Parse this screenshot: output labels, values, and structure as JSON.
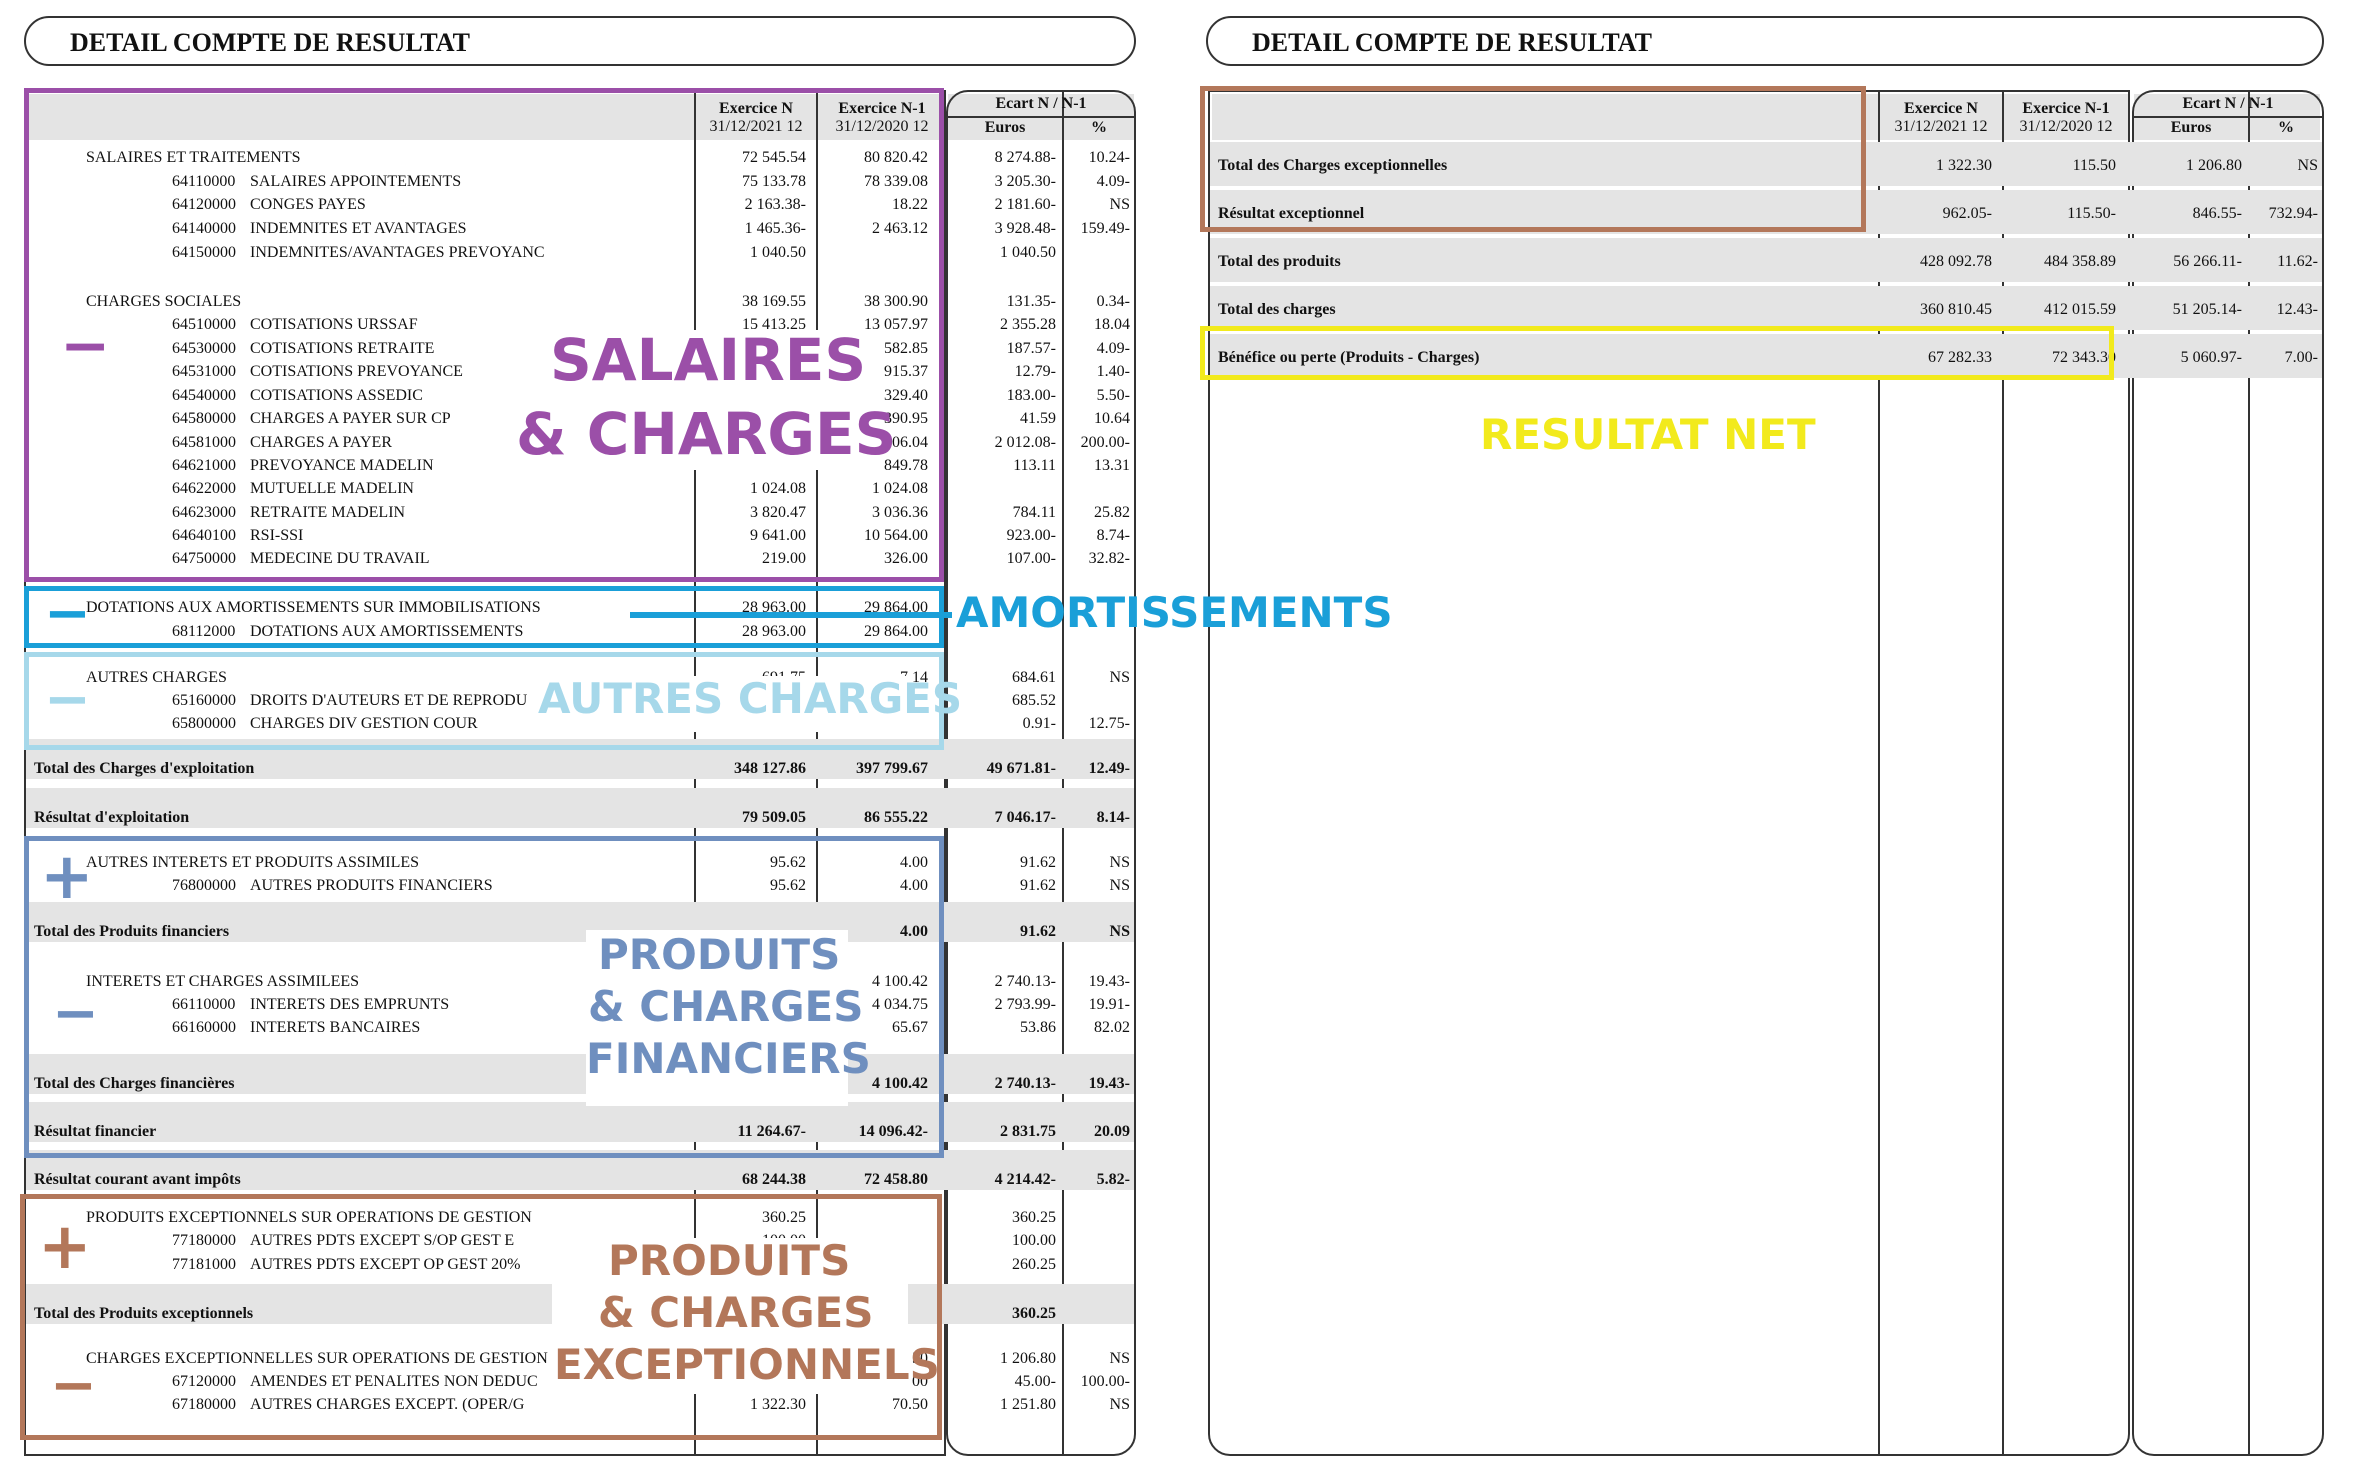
{
  "left": {
    "title": "DETAIL COMPTE DE RESULTAT",
    "headers": {
      "exN": "Exercice N",
      "exN_date": "31/12/2021   12",
      "exN1": "Exercice N-1",
      "exN1_date": "31/12/2020   12",
      "ecart": "Ecart N / N-1",
      "euros": "Euros",
      "pct": "%"
    },
    "rows": [
      {
        "label": "SALAIRES ET TRAITEMENTS",
        "n": "72 545.54",
        "n1": "80 820.42",
        "e": "8 274.88-",
        "p": "10.24-"
      },
      {
        "code": "64110000",
        "label": "SALAIRES APPOINTEMENTS",
        "n": "75 133.78",
        "n1": "78 339.08",
        "e": "3 205.30-",
        "p": "4.09-"
      },
      {
        "code": "64120000",
        "label": "CONGES PAYES",
        "n": "2 163.38-",
        "n1": "18.22",
        "e": "2 181.60-",
        "p": "NS"
      },
      {
        "code": "64140000",
        "label": "INDEMNITES ET AVANTAGES",
        "n": "1 465.36-",
        "n1": "2 463.12",
        "e": "3 928.48-",
        "p": "159.49-"
      },
      {
        "code": "64150000",
        "label": "INDEMNITES/AVANTAGES PREVOYANC",
        "n": "1 040.50",
        "n1": "",
        "e": "1 040.50",
        "p": ""
      },
      {
        "label": "CHARGES SOCIALES",
        "n": "38 169.55",
        "n1": "38 300.90",
        "e": "131.35-",
        "p": "0.34-"
      },
      {
        "code": "64510000",
        "label": "COTISATIONS URSSAF",
        "n": "15 413.25",
        "n1": "13 057.97",
        "e": "2 355.28",
        "p": "18.04"
      },
      {
        "code": "64530000",
        "label": "COTISATIONS RETRAITE",
        "n": "",
        "n1": "582.85",
        "e": "187.57-",
        "p": "4.09-"
      },
      {
        "code": "64531000",
        "label": "COTISATIONS PREVOYANCE",
        "n": "",
        "n1": "915.37",
        "e": "12.79-",
        "p": "1.40-"
      },
      {
        "code": "64540000",
        "label": "COTISATIONS ASSEDIC",
        "n": "",
        "n1": "329.40",
        "e": "183.00-",
        "p": "5.50-"
      },
      {
        "code": "64580000",
        "label": "CHARGES A PAYER SUR CP",
        "n": "",
        "n1": "390.95",
        "e": "41.59",
        "p": "10.64"
      },
      {
        "code": "64581000",
        "label": "CHARGES A PAYER",
        "n": "",
        "n1": "006.04",
        "e": "2 012.08-",
        "p": "200.00-"
      },
      {
        "code": "64621000",
        "label": "PREVOYANCE MADELIN",
        "n": "",
        "n1": "849.78",
        "e": "113.11",
        "p": "13.31"
      },
      {
        "code": "64622000",
        "label": "MUTUELLE MADELIN",
        "n": "1 024.08",
        "n1": "1 024.08",
        "e": "",
        "p": ""
      },
      {
        "code": "64623000",
        "label": "RETRAITE MADELIN",
        "n": "3 820.47",
        "n1": "3 036.36",
        "e": "784.11",
        "p": "25.82"
      },
      {
        "code": "64640100",
        "label": "RSI-SSI",
        "n": "9 641.00",
        "n1": "10 564.00",
        "e": "923.00-",
        "p": "8.74-"
      },
      {
        "code": "64750000",
        "label": "MEDECINE DU TRAVAIL",
        "n": "219.00",
        "n1": "326.00",
        "e": "107.00-",
        "p": "32.82-"
      },
      {
        "label": "DOTATIONS AUX AMORTISSEMENTS SUR IMMOBILISATIONS",
        "n": "28 963.00",
        "n1": "29 864.00",
        "e": "",
        "p": ""
      },
      {
        "code": "68112000",
        "label": "DOTATIONS AUX AMORTISSEMENTS",
        "n": "28 963.00",
        "n1": "29 864.00",
        "e": "",
        "p": ""
      },
      {
        "label": "AUTRES CHARGES",
        "n": "691.75",
        "n1": "7.14",
        "e": "684.61",
        "p": "NS"
      },
      {
        "code": "65160000",
        "label": "DROITS D'AUTEURS ET DE REPRODU",
        "n": "",
        "n1": "",
        "e": "685.52",
        "p": ""
      },
      {
        "code": "65800000",
        "label": "CHARGES DIV GESTION COUR",
        "n": "",
        "n1": "",
        "e": "0.91-",
        "p": "12.75-"
      },
      {
        "label": "Total des Charges d'exploitation",
        "bold": true,
        "n": "348 127.86",
        "n1": "397 799.67",
        "e": "49 671.81-",
        "p": "12.49-"
      },
      {
        "label": "Résultat d'exploitation",
        "bold": true,
        "n": "79 509.05",
        "n1": "86 555.22",
        "e": "7 046.17-",
        "p": "8.14-"
      },
      {
        "label": "AUTRES INTERETS ET PRODUITS ASSIMILES",
        "n": "95.62",
        "n1": "4.00",
        "e": "91.62",
        "p": "NS"
      },
      {
        "code": "76800000",
        "label": "AUTRES PRODUITS FINANCIERS",
        "n": "95.62",
        "n1": "4.00",
        "e": "91.62",
        "p": "NS"
      },
      {
        "label": "Total des Produits financiers",
        "bold": true,
        "n": "",
        "n1": "4.00",
        "e": "91.62",
        "p": "NS"
      },
      {
        "label": "INTERETS ET CHARGES ASSIMILEES",
        "n": "",
        "n1": "4 100.42",
        "e": "2 740.13-",
        "p": "19.43-"
      },
      {
        "code": "66110000",
        "label": "INTERETS DES EMPRUNTS",
        "n": "",
        "n1": "4 034.75",
        "e": "2 793.99-",
        "p": "19.91-"
      },
      {
        "code": "66160000",
        "label": "INTERETS BANCAIRES",
        "n": "",
        "n1": "65.67",
        "e": "53.86",
        "p": "82.02"
      },
      {
        "label": "Total des Charges financières",
        "bold": true,
        "n": "",
        "n1": "4 100.42",
        "e": "2 740.13-",
        "p": "19.43-"
      },
      {
        "label": "Résultat financier",
        "bold": true,
        "n": "11 264.67-",
        "n1": "14 096.42-",
        "e": "2 831.75",
        "p": "20.09"
      },
      {
        "label": "Résultat courant avant impôts",
        "bold": true,
        "n": "68 244.38",
        "n1": "72 458.80",
        "e": "4 214.42-",
        "p": "5.82-"
      },
      {
        "label": "PRODUITS EXCEPTIONNELS SUR OPERATIONS DE GESTION",
        "n": "360.25",
        "n1": "",
        "e": "360.25",
        "p": ""
      },
      {
        "code": "77180000",
        "label": "AUTRES PDTS EXCEPT S/OP GEST E",
        "n": "100.00",
        "n1": "",
        "e": "100.00",
        "p": ""
      },
      {
        "code": "77181000",
        "label": "AUTRES PDTS EXCEPT OP GEST 20%",
        "n": "",
        "n1": "",
        "e": "260.25",
        "p": ""
      },
      {
        "label": "Total des Produits exceptionnels",
        "bold": true,
        "n": "",
        "n1": "",
        "e": "360.25",
        "p": ""
      },
      {
        "label": "CHARGES EXCEPTIONNELLES SUR OPERATIONS DE GESTION",
        "n": "",
        "n1": "50",
        "e": "1 206.80",
        "p": "NS"
      },
      {
        "code": "67120000",
        "label": "AMENDES ET PENALITES NON DEDUC",
        "n": "",
        "n1": "00",
        "e": "45.00-",
        "p": "100.00-"
      },
      {
        "code": "67180000",
        "label": "AUTRES CHARGES EXCEPT. (OPER/G",
        "n": "1 322.30",
        "n1": "70.50",
        "e": "1 251.80",
        "p": "NS"
      }
    ]
  },
  "right": {
    "title": "DETAIL COMPTE DE RESULTAT",
    "rows": [
      {
        "label": "Total des Charges exceptionnelles",
        "n": "1 322.30",
        "n1": "115.50",
        "e": "1 206.80",
        "p": "NS"
      },
      {
        "label": "Résultat exceptionnel",
        "n": "962.05-",
        "n1": "115.50-",
        "e": "846.55-",
        "p": "732.94-"
      },
      {
        "label": "Total des produits",
        "n": "428 092.78",
        "n1": "484 358.89",
        "e": "56 266.11-",
        "p": "11.62-"
      },
      {
        "label": "Total des charges",
        "n": "360 810.45",
        "n1": "412 015.59",
        "e": "51 205.14-",
        "p": "12.43-"
      },
      {
        "label": "Bénéfice ou perte (Produits - Charges)",
        "n": "67 282.33",
        "n1": "72 343.30",
        "e": "5 060.97-",
        "p": "7.00-"
      }
    ]
  },
  "annotations": {
    "salaires": [
      "SALAIRES",
      "& CHARGES"
    ],
    "amortissements": "AMORTISSEMENTS",
    "autres": "AUTRES CHARGES",
    "financiers": [
      "PRODUITS",
      "& CHARGES",
      "FINANCIERS"
    ],
    "exceptionnels": [
      "PRODUITS",
      "& CHARGES",
      "EXCEPTIONNELS"
    ],
    "resultat": "RESULTAT NET",
    "signs": {
      "minus": "−",
      "plus": "+"
    }
  },
  "colors": {
    "purple": "#9b4fa8",
    "blue": "#1a9fd8",
    "lightblue": "#a6d8ea",
    "steel": "#6f8fbf",
    "brown": "#b3775a",
    "yellow": "#f2ea1c"
  }
}
